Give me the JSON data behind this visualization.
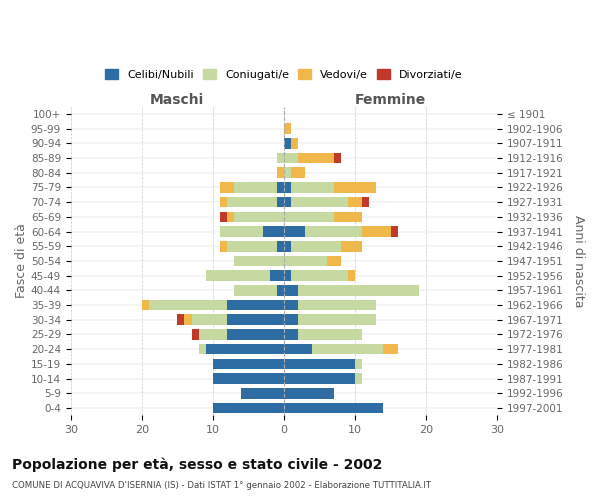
{
  "age_groups": [
    "0-4",
    "5-9",
    "10-14",
    "15-19",
    "20-24",
    "25-29",
    "30-34",
    "35-39",
    "40-44",
    "45-49",
    "50-54",
    "55-59",
    "60-64",
    "65-69",
    "70-74",
    "75-79",
    "80-84",
    "85-89",
    "90-94",
    "95-99",
    "100+"
  ],
  "birth_years": [
    "1997-2001",
    "1992-1996",
    "1987-1991",
    "1982-1986",
    "1977-1981",
    "1972-1976",
    "1967-1971",
    "1962-1966",
    "1957-1961",
    "1952-1956",
    "1947-1951",
    "1942-1946",
    "1937-1941",
    "1932-1936",
    "1927-1931",
    "1922-1926",
    "1917-1921",
    "1912-1916",
    "1907-1911",
    "1902-1906",
    "≤ 1901"
  ],
  "males": {
    "celibi": [
      10,
      6,
      10,
      10,
      11,
      8,
      8,
      8,
      1,
      2,
      0,
      1,
      3,
      0,
      1,
      1,
      0,
      0,
      0,
      0,
      0
    ],
    "coniugati": [
      0,
      0,
      0,
      0,
      1,
      4,
      5,
      11,
      6,
      9,
      7,
      7,
      6,
      7,
      7,
      6,
      0,
      1,
      0,
      0,
      0
    ],
    "vedovi": [
      0,
      0,
      0,
      0,
      0,
      0,
      1,
      1,
      0,
      0,
      0,
      1,
      0,
      1,
      1,
      2,
      1,
      0,
      0,
      0,
      0
    ],
    "divorziati": [
      0,
      0,
      0,
      0,
      0,
      1,
      1,
      0,
      0,
      0,
      0,
      0,
      0,
      1,
      0,
      0,
      0,
      0,
      0,
      0,
      0
    ]
  },
  "females": {
    "nubili": [
      14,
      7,
      10,
      10,
      4,
      2,
      2,
      2,
      2,
      1,
      0,
      1,
      3,
      0,
      1,
      1,
      0,
      0,
      1,
      0,
      0
    ],
    "coniugate": [
      0,
      0,
      1,
      1,
      10,
      9,
      11,
      11,
      17,
      8,
      6,
      7,
      8,
      7,
      8,
      6,
      1,
      2,
      0,
      0,
      0
    ],
    "vedove": [
      0,
      0,
      0,
      0,
      2,
      0,
      0,
      0,
      0,
      1,
      2,
      3,
      4,
      4,
      2,
      6,
      2,
      5,
      1,
      1,
      0
    ],
    "divorziate": [
      0,
      0,
      0,
      0,
      0,
      0,
      0,
      0,
      0,
      0,
      0,
      0,
      1,
      0,
      1,
      0,
      0,
      1,
      0,
      0,
      0
    ]
  },
  "color_celibi": "#2e6da4",
  "color_coniugati": "#c5d9a0",
  "color_vedovi": "#f0b84b",
  "color_divorziati": "#c0392b",
  "title": "Popolazione per età, sesso e stato civile - 2002",
  "subtitle": "COMUNE DI ACQUAVIVA D'ISERNIA (IS) - Dati ISTAT 1° gennaio 2002 - Elaborazione TUTTITALIA.IT",
  "ylabel_left": "Fasce di età",
  "ylabel_right": "Anni di nascita",
  "xlabel_left": "Maschi",
  "xlabel_right": "Femmine",
  "xlim": 30,
  "background_color": "#ffffff",
  "grid_color": "#cccccc"
}
